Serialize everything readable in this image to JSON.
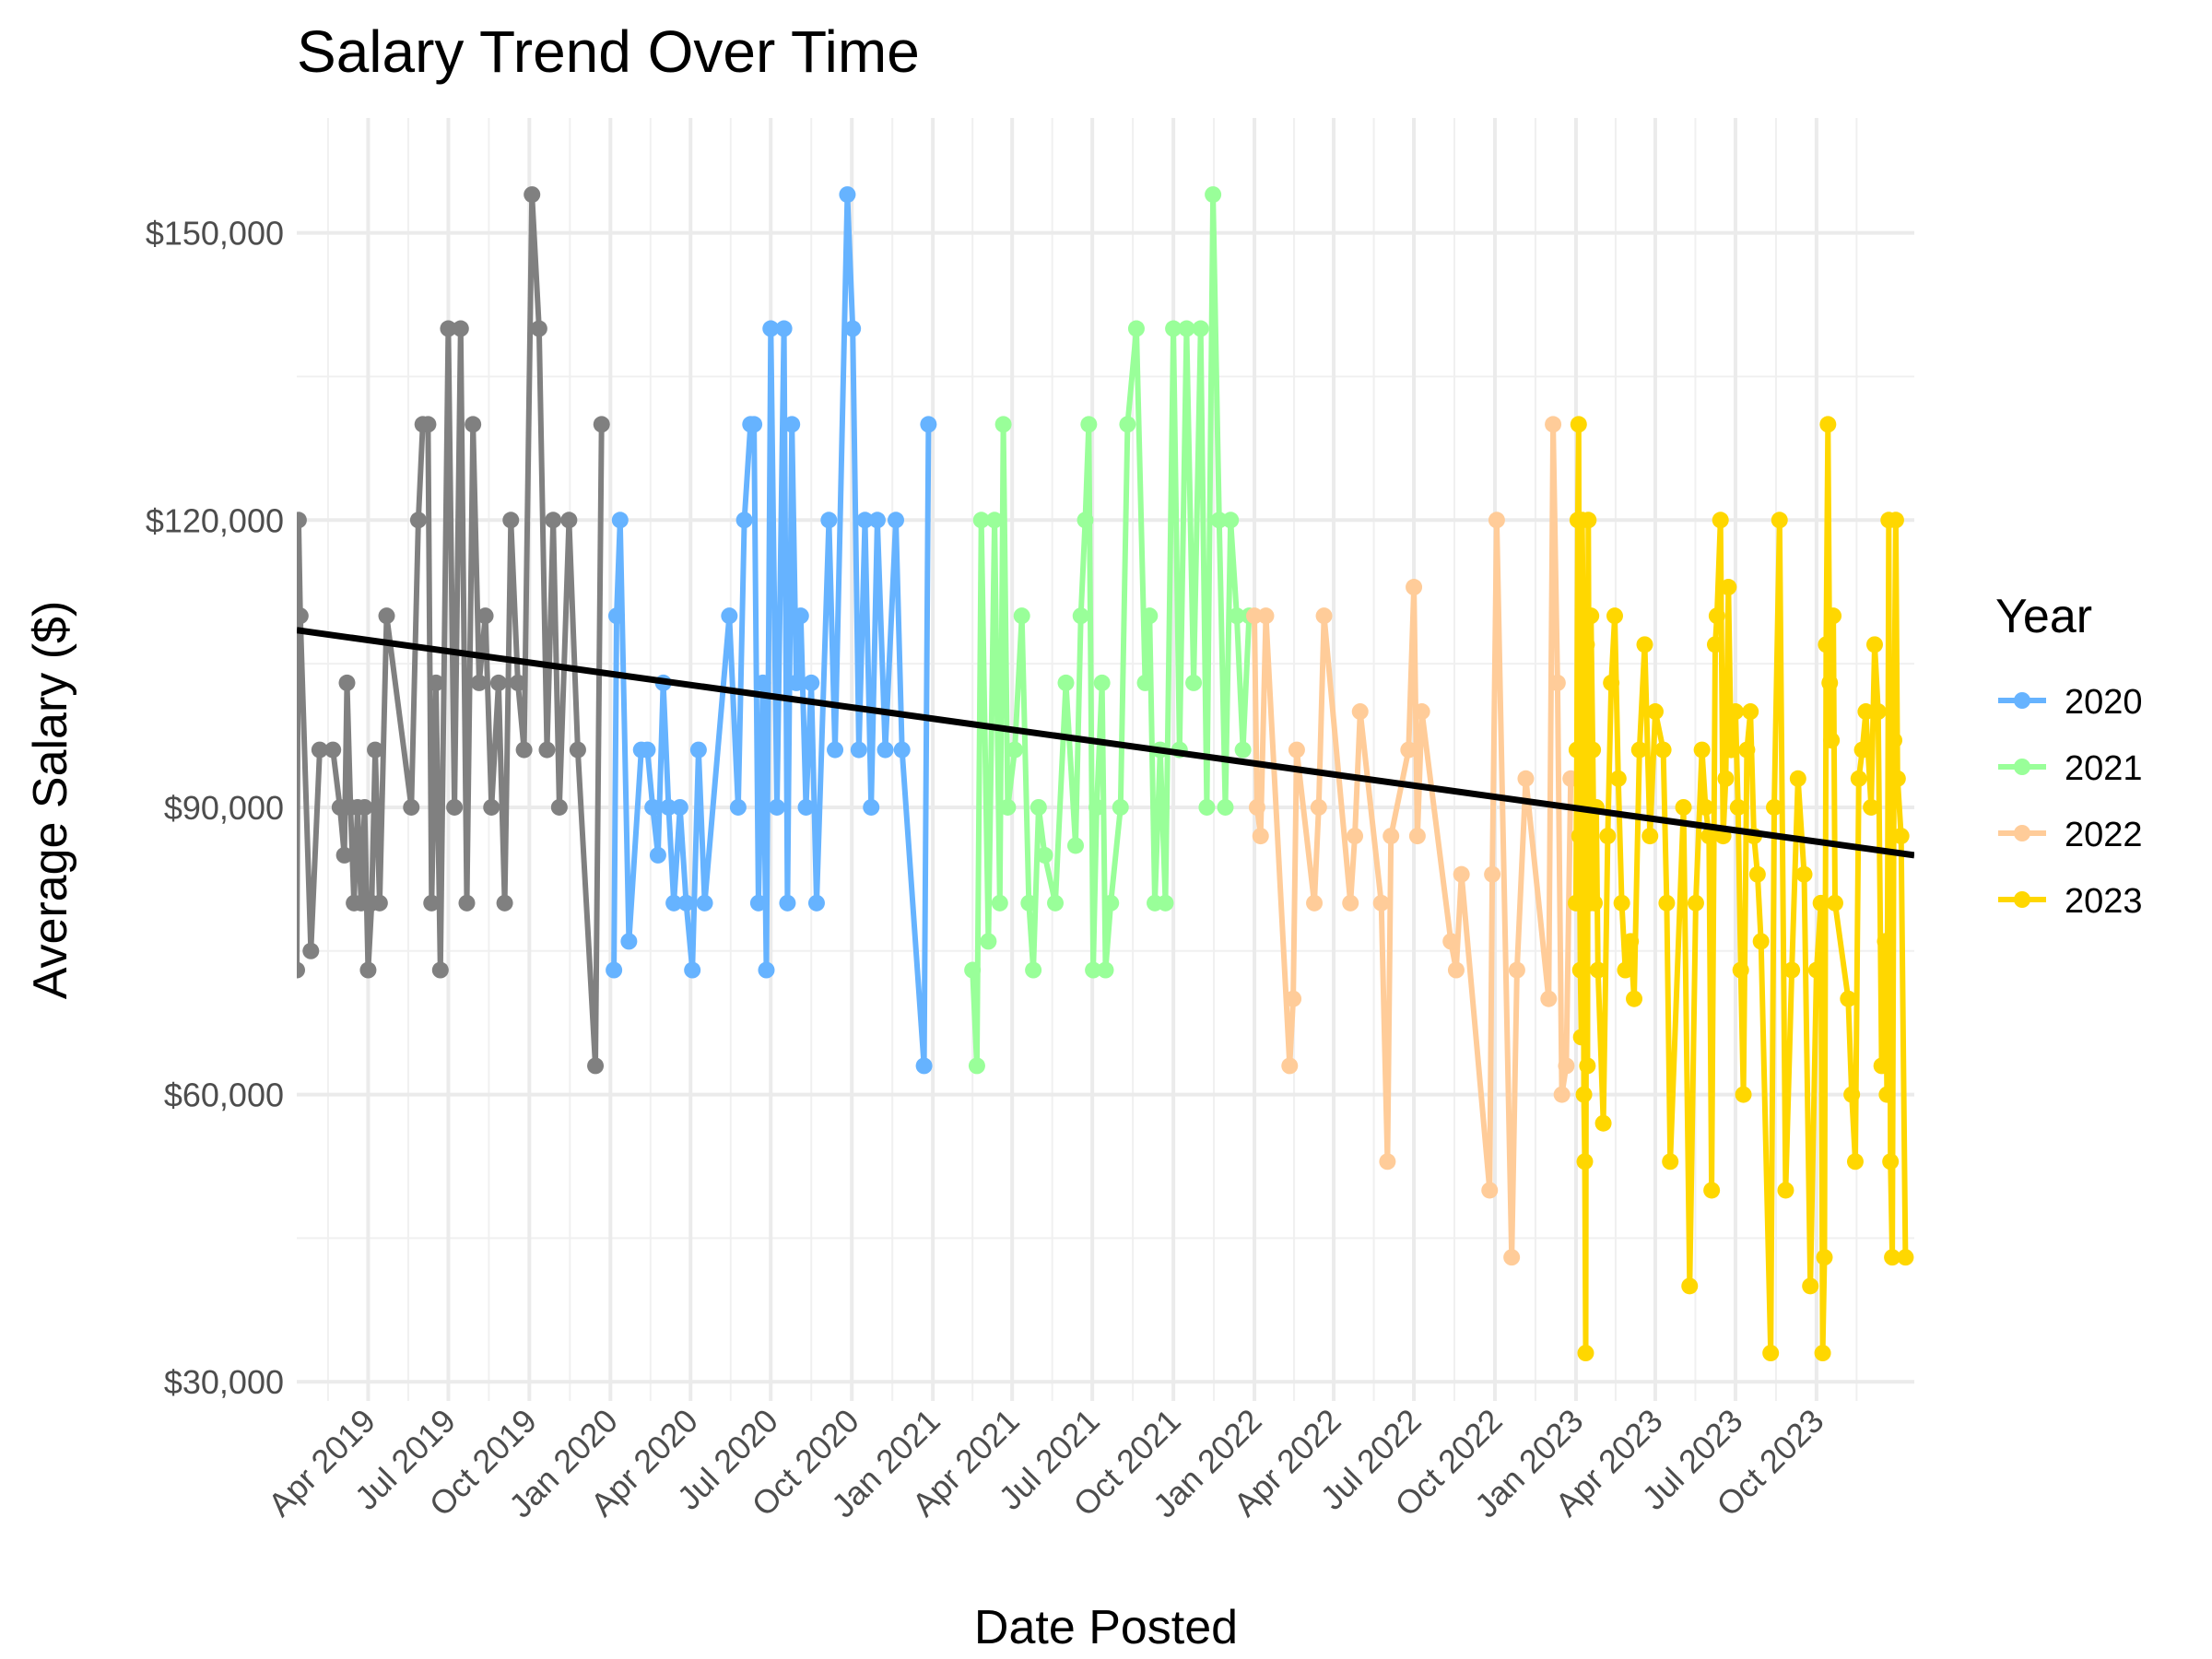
{
  "chart_data": {
    "type": "line",
    "title": "Salary Trend Over Time",
    "xlabel": "Date Posted",
    "ylabel": "Average Salary ($)",
    "x_scale": "date",
    "xlim": [
      "2019-01-10",
      "2024-01-20"
    ],
    "ylim": [
      28000,
      162000
    ],
    "y_ticks": [
      30000,
      60000,
      90000,
      120000,
      150000
    ],
    "y_tick_labels": [
      "$30,000",
      "$60,000",
      "$90,000",
      "$120,000",
      "$150,000"
    ],
    "x_ticks": [
      "2019-04-01",
      "2019-07-01",
      "2019-10-01",
      "2020-01-01",
      "2020-04-01",
      "2020-07-01",
      "2020-10-01",
      "2021-01-01",
      "2021-04-01",
      "2021-07-01",
      "2021-10-01",
      "2022-01-01",
      "2022-04-01",
      "2022-07-01",
      "2022-10-01",
      "2023-01-01",
      "2023-04-01",
      "2023-07-01",
      "2023-10-01"
    ],
    "x_tick_labels": [
      "Apr 2019",
      "Jul 2019",
      "Oct 2019",
      "Jan 2020",
      "Apr 2020",
      "Jul 2020",
      "Oct 2020",
      "Jan 2021",
      "Apr 2021",
      "Jul 2021",
      "Oct 2021",
      "Jan 2022",
      "Apr 2022",
      "Jul 2022",
      "Oct 2022",
      "Jan 2023",
      "Apr 2023",
      "Jul 2023",
      "Oct 2023"
    ],
    "grid": true,
    "legend_title": "Year",
    "legend_position": "right",
    "series": [
      {
        "legend": false,
        "color": "#808080",
        "dates": [
          "2019-01-10",
          "2019-01-12",
          "2019-01-14",
          "2019-01-26",
          "2019-02-05",
          "2019-02-20",
          "2019-02-28",
          "2019-03-05",
          "2019-03-08",
          "2019-03-12",
          "2019-03-16",
          "2019-03-20",
          "2019-03-24",
          "2019-03-28",
          "2019-04-01",
          "2019-04-05",
          "2019-04-09",
          "2019-04-14",
          "2019-04-22",
          "2019-05-20",
          "2019-05-28",
          "2019-06-02",
          "2019-06-08",
          "2019-06-12",
          "2019-06-17",
          "2019-06-22",
          "2019-07-01",
          "2019-07-08",
          "2019-07-15",
          "2019-07-22",
          "2019-07-29",
          "2019-08-05",
          "2019-08-12",
          "2019-08-19",
          "2019-08-27",
          "2019-09-03",
          "2019-09-10",
          "2019-09-18",
          "2019-09-25",
          "2019-10-04",
          "2019-10-12",
          "2019-10-21",
          "2019-10-28",
          "2019-11-04",
          "2019-11-15",
          "2019-11-25",
          "2019-12-15",
          "2019-12-22"
        ],
        "values": [
          73000,
          120000,
          110000,
          75000,
          96000,
          96000,
          90000,
          85000,
          103000,
          90000,
          80000,
          90000,
          80000,
          90000,
          73000,
          80000,
          96000,
          80000,
          110000,
          90000,
          120000,
          130000,
          130000,
          80000,
          103000,
          73000,
          140000,
          90000,
          140000,
          80000,
          130000,
          103000,
          110000,
          90000,
          103000,
          80000,
          120000,
          103000,
          96000,
          154000,
          140000,
          96000,
          120000,
          90000,
          120000,
          96000,
          63000,
          130000
        ]
      },
      {
        "name": "2020",
        "color": "#66b3ff",
        "dates": [
          "2020-01-05",
          "2020-01-08",
          "2020-01-12",
          "2020-01-22",
          "2020-02-05",
          "2020-02-12",
          "2020-02-18",
          "2020-02-24",
          "2020-03-01",
          "2020-03-07",
          "2020-03-13",
          "2020-03-20",
          "2020-03-27",
          "2020-04-03",
          "2020-04-10",
          "2020-04-17",
          "2020-05-15",
          "2020-05-25",
          "2020-06-01",
          "2020-06-08",
          "2020-06-12",
          "2020-06-17",
          "2020-06-22",
          "2020-06-26",
          "2020-07-01",
          "2020-07-08",
          "2020-07-16",
          "2020-07-20",
          "2020-07-25",
          "2020-07-30",
          "2020-08-04",
          "2020-08-10",
          "2020-08-16",
          "2020-08-22",
          "2020-09-05",
          "2020-09-12",
          "2020-09-26",
          "2020-10-02",
          "2020-10-09",
          "2020-10-16",
          "2020-10-23",
          "2020-10-30",
          "2020-11-08",
          "2020-11-20",
          "2020-11-27",
          "2020-12-22",
          "2020-12-27"
        ],
        "values": [
          73000,
          110000,
          120000,
          76000,
          96000,
          96000,
          90000,
          85000,
          103000,
          90000,
          80000,
          90000,
          80000,
          73000,
          96000,
          80000,
          110000,
          90000,
          120000,
          130000,
          130000,
          80000,
          103000,
          73000,
          140000,
          90000,
          140000,
          80000,
          130000,
          103000,
          110000,
          90000,
          103000,
          80000,
          120000,
          96000,
          154000,
          140000,
          96000,
          120000,
          90000,
          120000,
          96000,
          120000,
          96000,
          63000,
          130000
        ]
      },
      {
        "name": "2021",
        "color": "#99ff99",
        "dates": [
          "2021-02-15",
          "2021-02-20",
          "2021-02-25",
          "2021-03-05",
          "2021-03-12",
          "2021-03-18",
          "2021-03-22",
          "2021-03-27",
          "2021-04-04",
          "2021-04-12",
          "2021-04-20",
          "2021-04-25",
          "2021-05-01",
          "2021-05-08",
          "2021-05-20",
          "2021-06-01",
          "2021-06-12",
          "2021-06-18",
          "2021-06-23",
          "2021-06-27",
          "2021-07-02",
          "2021-07-06",
          "2021-07-12",
          "2021-07-16",
          "2021-07-22",
          "2021-08-02",
          "2021-08-10",
          "2021-08-20",
          "2021-08-30",
          "2021-09-04",
          "2021-09-10",
          "2021-09-16",
          "2021-09-22",
          "2021-10-01",
          "2021-10-08",
          "2021-10-16",
          "2021-10-24",
          "2021-11-01",
          "2021-11-08",
          "2021-11-15",
          "2021-11-22",
          "2021-11-29",
          "2021-12-05",
          "2021-12-12",
          "2021-12-19",
          "2021-12-26"
        ],
        "values": [
          73000,
          63000,
          120000,
          76000,
          120000,
          80000,
          130000,
          90000,
          96000,
          110000,
          80000,
          73000,
          90000,
          85000,
          80000,
          103000,
          86000,
          110000,
          120000,
          130000,
          73000,
          90000,
          103000,
          73000,
          80000,
          90000,
          130000,
          140000,
          103000,
          110000,
          80000,
          96000,
          80000,
          140000,
          96000,
          140000,
          103000,
          140000,
          90000,
          154000,
          120000,
          90000,
          120000,
          110000,
          96000,
          110000
        ]
      },
      {
        "name": "2022",
        "color": "#ffcc99",
        "dates": [
          "2022-01-01",
          "2022-01-04",
          "2022-01-08",
          "2022-01-14",
          "2022-02-10",
          "2022-02-14",
          "2022-02-18",
          "2022-03-10",
          "2022-03-15",
          "2022-03-21",
          "2022-04-20",
          "2022-04-25",
          "2022-05-01",
          "2022-05-25",
          "2022-06-01",
          "2022-06-05",
          "2022-06-25",
          "2022-07-01",
          "2022-07-05",
          "2022-07-10",
          "2022-08-12",
          "2022-08-18",
          "2022-08-24",
          "2022-09-25",
          "2022-09-28",
          "2022-10-03",
          "2022-10-20",
          "2022-10-26",
          "2022-11-05",
          "2022-12-01",
          "2022-12-06",
          "2022-12-11",
          "2022-12-16",
          "2022-12-21",
          "2022-12-26"
        ],
        "values": [
          110000,
          90000,
          87000,
          110000,
          63000,
          70000,
          96000,
          80000,
          90000,
          110000,
          80000,
          87000,
          100000,
          80000,
          53000,
          87000,
          96000,
          113000,
          87000,
          100000,
          76000,
          73000,
          83000,
          50000,
          83000,
          120000,
          43000,
          73000,
          93000,
          70000,
          130000,
          103000,
          60000,
          63000,
          93000
        ]
      },
      {
        "name": "2023",
        "color": "#ffd700",
        "dates": [
          "2023-01-01",
          "2023-01-02",
          "2023-01-03",
          "2023-01-04",
          "2023-01-05",
          "2023-01-06",
          "2023-01-07",
          "2023-01-08",
          "2023-01-09",
          "2023-01-10",
          "2023-01-11",
          "2023-01-12",
          "2023-01-13",
          "2023-01-14",
          "2023-01-15",
          "2023-01-16",
          "2023-01-17",
          "2023-01-18",
          "2023-01-20",
          "2023-01-22",
          "2023-01-24",
          "2023-01-26",
          "2023-02-01",
          "2023-02-06",
          "2023-02-10",
          "2023-02-14",
          "2023-02-18",
          "2023-02-22",
          "2023-02-26",
          "2023-03-04",
          "2023-03-08",
          "2023-03-14",
          "2023-03-20",
          "2023-03-26",
          "2023-04-01",
          "2023-04-10",
          "2023-04-14",
          "2023-04-18",
          "2023-05-03",
          "2023-05-10",
          "2023-05-17",
          "2023-05-24",
          "2023-05-28",
          "2023-06-01",
          "2023-06-04",
          "2023-06-08",
          "2023-06-10",
          "2023-06-14",
          "2023-06-17",
          "2023-06-20",
          "2023-06-23",
          "2023-06-26",
          "2023-07-01",
          "2023-07-04",
          "2023-07-07",
          "2023-07-10",
          "2023-07-14",
          "2023-07-18",
          "2023-07-22",
          "2023-07-26",
          "2023-07-30",
          "2023-08-10",
          "2023-08-14",
          "2023-08-20",
          "2023-08-27",
          "2023-09-03",
          "2023-09-10",
          "2023-09-17",
          "2023-09-24",
          "2023-10-01",
          "2023-10-06",
          "2023-10-08",
          "2023-10-10",
          "2023-10-12",
          "2023-10-14",
          "2023-10-16",
          "2023-10-18",
          "2023-10-20",
          "2023-10-22",
          "2023-11-06",
          "2023-11-10",
          "2023-11-14",
          "2023-11-18",
          "2023-11-22",
          "2023-11-26",
          "2023-12-02",
          "2023-12-06",
          "2023-12-10",
          "2023-12-14",
          "2023-12-18",
          "2023-12-20",
          "2023-12-22",
          "2023-12-24",
          "2023-12-26",
          "2023-12-28",
          "2023-12-30",
          "2024-01-01",
          "2024-01-05",
          "2024-01-10"
        ],
        "values": [
          80000,
          96000,
          120000,
          130000,
          87000,
          73000,
          66000,
          120000,
          110000,
          60000,
          53000,
          33000,
          107000,
          63000,
          120000,
          90000,
          80000,
          110000,
          96000,
          80000,
          90000,
          73000,
          57000,
          87000,
          103000,
          110000,
          93000,
          80000,
          73000,
          76000,
          70000,
          96000,
          107000,
          87000,
          100000,
          96000,
          80000,
          53000,
          90000,
          40000,
          80000,
          96000,
          90000,
          87000,
          50000,
          107000,
          110000,
          120000,
          87000,
          93000,
          113000,
          96000,
          100000,
          90000,
          73000,
          60000,
          96000,
          100000,
          87000,
          83000,
          76000,
          33000,
          90000,
          120000,
          50000,
          73000,
          93000,
          83000,
          40000,
          73000,
          80000,
          33000,
          43000,
          107000,
          130000,
          103000,
          97000,
          110000,
          80000,
          70000,
          60000,
          53000,
          93000,
          96000,
          100000,
          90000,
          107000,
          100000,
          63000,
          76000,
          60000,
          120000,
          53000,
          43000,
          97000,
          120000,
          93000,
          87000,
          43000
        ]
      }
    ],
    "trend_line": {
      "color": "#000000",
      "from": {
        "date": "2019-01-10",
        "value": 108500
      },
      "to": {
        "date": "2024-01-20",
        "value": 85000
      }
    }
  }
}
